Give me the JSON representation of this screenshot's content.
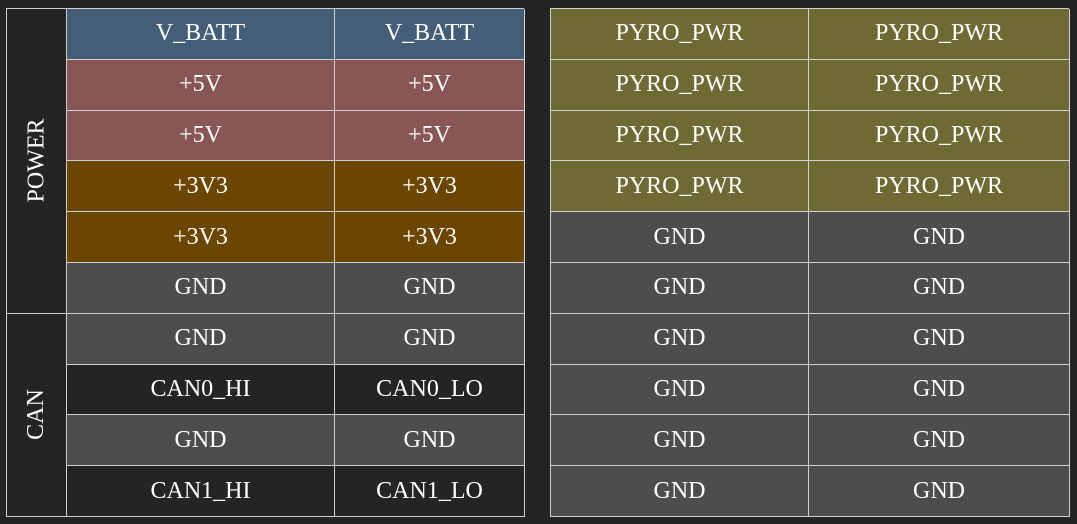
{
  "colors": {
    "vbatt": "#445e78",
    "p5v": "#895656",
    "p3v3": "#6a4600",
    "gnd": "#4d4d4d",
    "can": "#242424",
    "pyro": "#6f6a34",
    "group_bg": "#242424"
  },
  "left_connector": {
    "groups": [
      {
        "label": "POWER",
        "rows": 6
      },
      {
        "label": "CAN",
        "rows": 4
      }
    ],
    "rows": [
      {
        "pins": [
          "V_BATT",
          "V_BATT"
        ],
        "color": "vbatt"
      },
      {
        "pins": [
          "+5V",
          "+5V"
        ],
        "color": "p5v"
      },
      {
        "pins": [
          "+5V",
          "+5V"
        ],
        "color": "p5v"
      },
      {
        "pins": [
          "+3V3",
          "+3V3"
        ],
        "color": "p3v3"
      },
      {
        "pins": [
          "+3V3",
          "+3V3"
        ],
        "color": "p3v3"
      },
      {
        "pins": [
          "GND",
          "GND"
        ],
        "color": "gnd"
      },
      {
        "pins": [
          "GND",
          "GND"
        ],
        "color": "gnd"
      },
      {
        "pins": [
          "CAN0_HI",
          "CAN0_LO"
        ],
        "color": "can"
      },
      {
        "pins": [
          "GND",
          "GND"
        ],
        "color": "gnd"
      },
      {
        "pins": [
          "CAN1_HI",
          "CAN1_LO"
        ],
        "color": "can"
      }
    ]
  },
  "right_connector": {
    "rows": [
      {
        "pins": [
          "PYRO_PWR",
          "PYRO_PWR"
        ],
        "color": "pyro"
      },
      {
        "pins": [
          "PYRO_PWR",
          "PYRO_PWR"
        ],
        "color": "pyro"
      },
      {
        "pins": [
          "PYRO_PWR",
          "PYRO_PWR"
        ],
        "color": "pyro"
      },
      {
        "pins": [
          "PYRO_PWR",
          "PYRO_PWR"
        ],
        "color": "pyro"
      },
      {
        "pins": [
          "GND",
          "GND"
        ],
        "color": "gnd"
      },
      {
        "pins": [
          "GND",
          "GND"
        ],
        "color": "gnd"
      },
      {
        "pins": [
          "GND",
          "GND"
        ],
        "color": "gnd"
      },
      {
        "pins": [
          "GND",
          "GND"
        ],
        "color": "gnd"
      },
      {
        "pins": [
          "GND",
          "GND"
        ],
        "color": "gnd"
      },
      {
        "pins": [
          "GND",
          "GND"
        ],
        "color": "gnd"
      }
    ]
  }
}
